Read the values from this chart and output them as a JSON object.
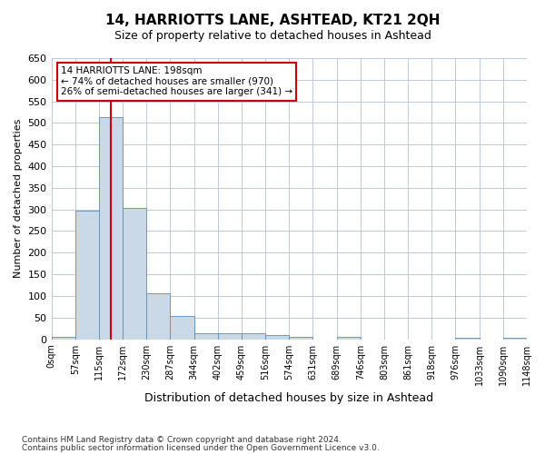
{
  "title": "14, HARRIOTTS LANE, ASHTEAD, KT21 2QH",
  "subtitle": "Size of property relative to detached houses in Ashtead",
  "xlabel": "Distribution of detached houses by size in Ashtead",
  "ylabel": "Number of detached properties",
  "bin_labels": [
    "0sqm",
    "57sqm",
    "115sqm",
    "172sqm",
    "230sqm",
    "287sqm",
    "344sqm",
    "402sqm",
    "459sqm",
    "516sqm",
    "574sqm",
    "631sqm",
    "689sqm",
    "746sqm",
    "803sqm",
    "861sqm",
    "918sqm",
    "976sqm",
    "1033sqm",
    "1090sqm",
    "1148sqm"
  ],
  "bar_values": [
    5,
    298,
    513,
    303,
    106,
    53,
    13,
    13,
    13,
    9,
    6,
    0,
    5,
    0,
    0,
    0,
    0,
    3,
    0,
    3
  ],
  "bar_color": "#c9d9e8",
  "bar_edge_color": "#5b8db8",
  "vline_x": 2.5,
  "vline_color": "#cc0000",
  "annotation_box_text": "14 HARRIOTTS LANE: 198sqm\n← 74% of detached houses are smaller (970)\n26% of semi-detached houses are larger (341) →",
  "annotation_box_color": "#cc0000",
  "ylim": [
    0,
    650
  ],
  "yticks": [
    0,
    50,
    100,
    150,
    200,
    250,
    300,
    350,
    400,
    450,
    500,
    550,
    600,
    650
  ],
  "footer_line1": "Contains HM Land Registry data © Crown copyright and database right 2024.",
  "footer_line2": "Contains public sector information licensed under the Open Government Licence v3.0.",
  "background_color": "#ffffff",
  "grid_color": "#c0c8d8"
}
